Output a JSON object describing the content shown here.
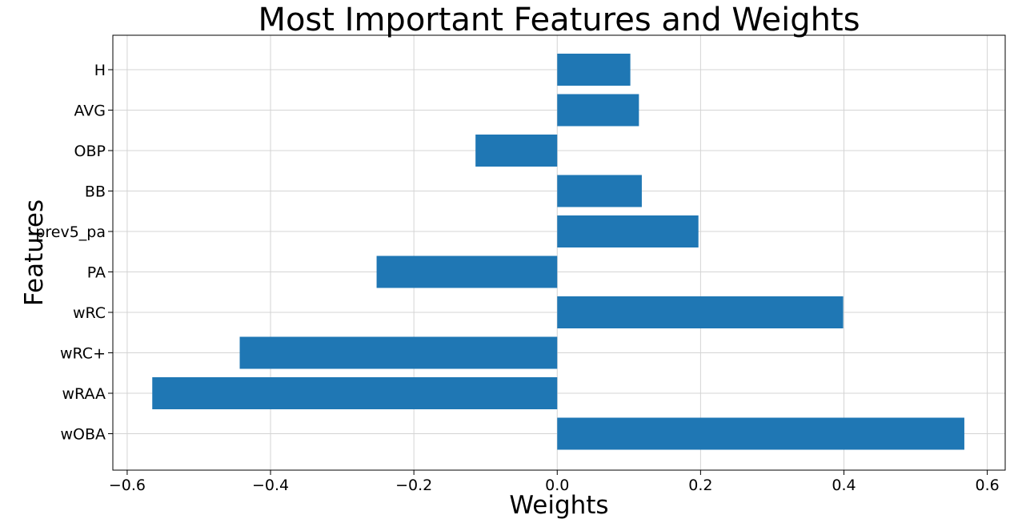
{
  "chart_data": {
    "type": "bar",
    "orientation": "horizontal",
    "title": "Most Important Features and Weights",
    "xlabel": "Weights",
    "ylabel": "Features",
    "categories": [
      "wOBA",
      "wRAA",
      "wRC+",
      "wRC",
      "PA",
      "prev5_pa",
      "BB",
      "OBP",
      "AVG",
      "H"
    ],
    "values": [
      0.568,
      -0.565,
      -0.443,
      0.399,
      -0.252,
      0.197,
      0.118,
      -0.114,
      0.114,
      0.102
    ],
    "xlim": [
      -0.62,
      0.625
    ],
    "x_ticks": [
      -0.6,
      -0.4,
      -0.2,
      0.0,
      0.2,
      0.4,
      0.6
    ],
    "x_tick_labels": [
      "−0.6",
      "−0.4",
      "−0.2",
      "0.0",
      "0.2",
      "0.4",
      "0.6"
    ],
    "grid": true,
    "bar_color": "#1f77b4"
  }
}
